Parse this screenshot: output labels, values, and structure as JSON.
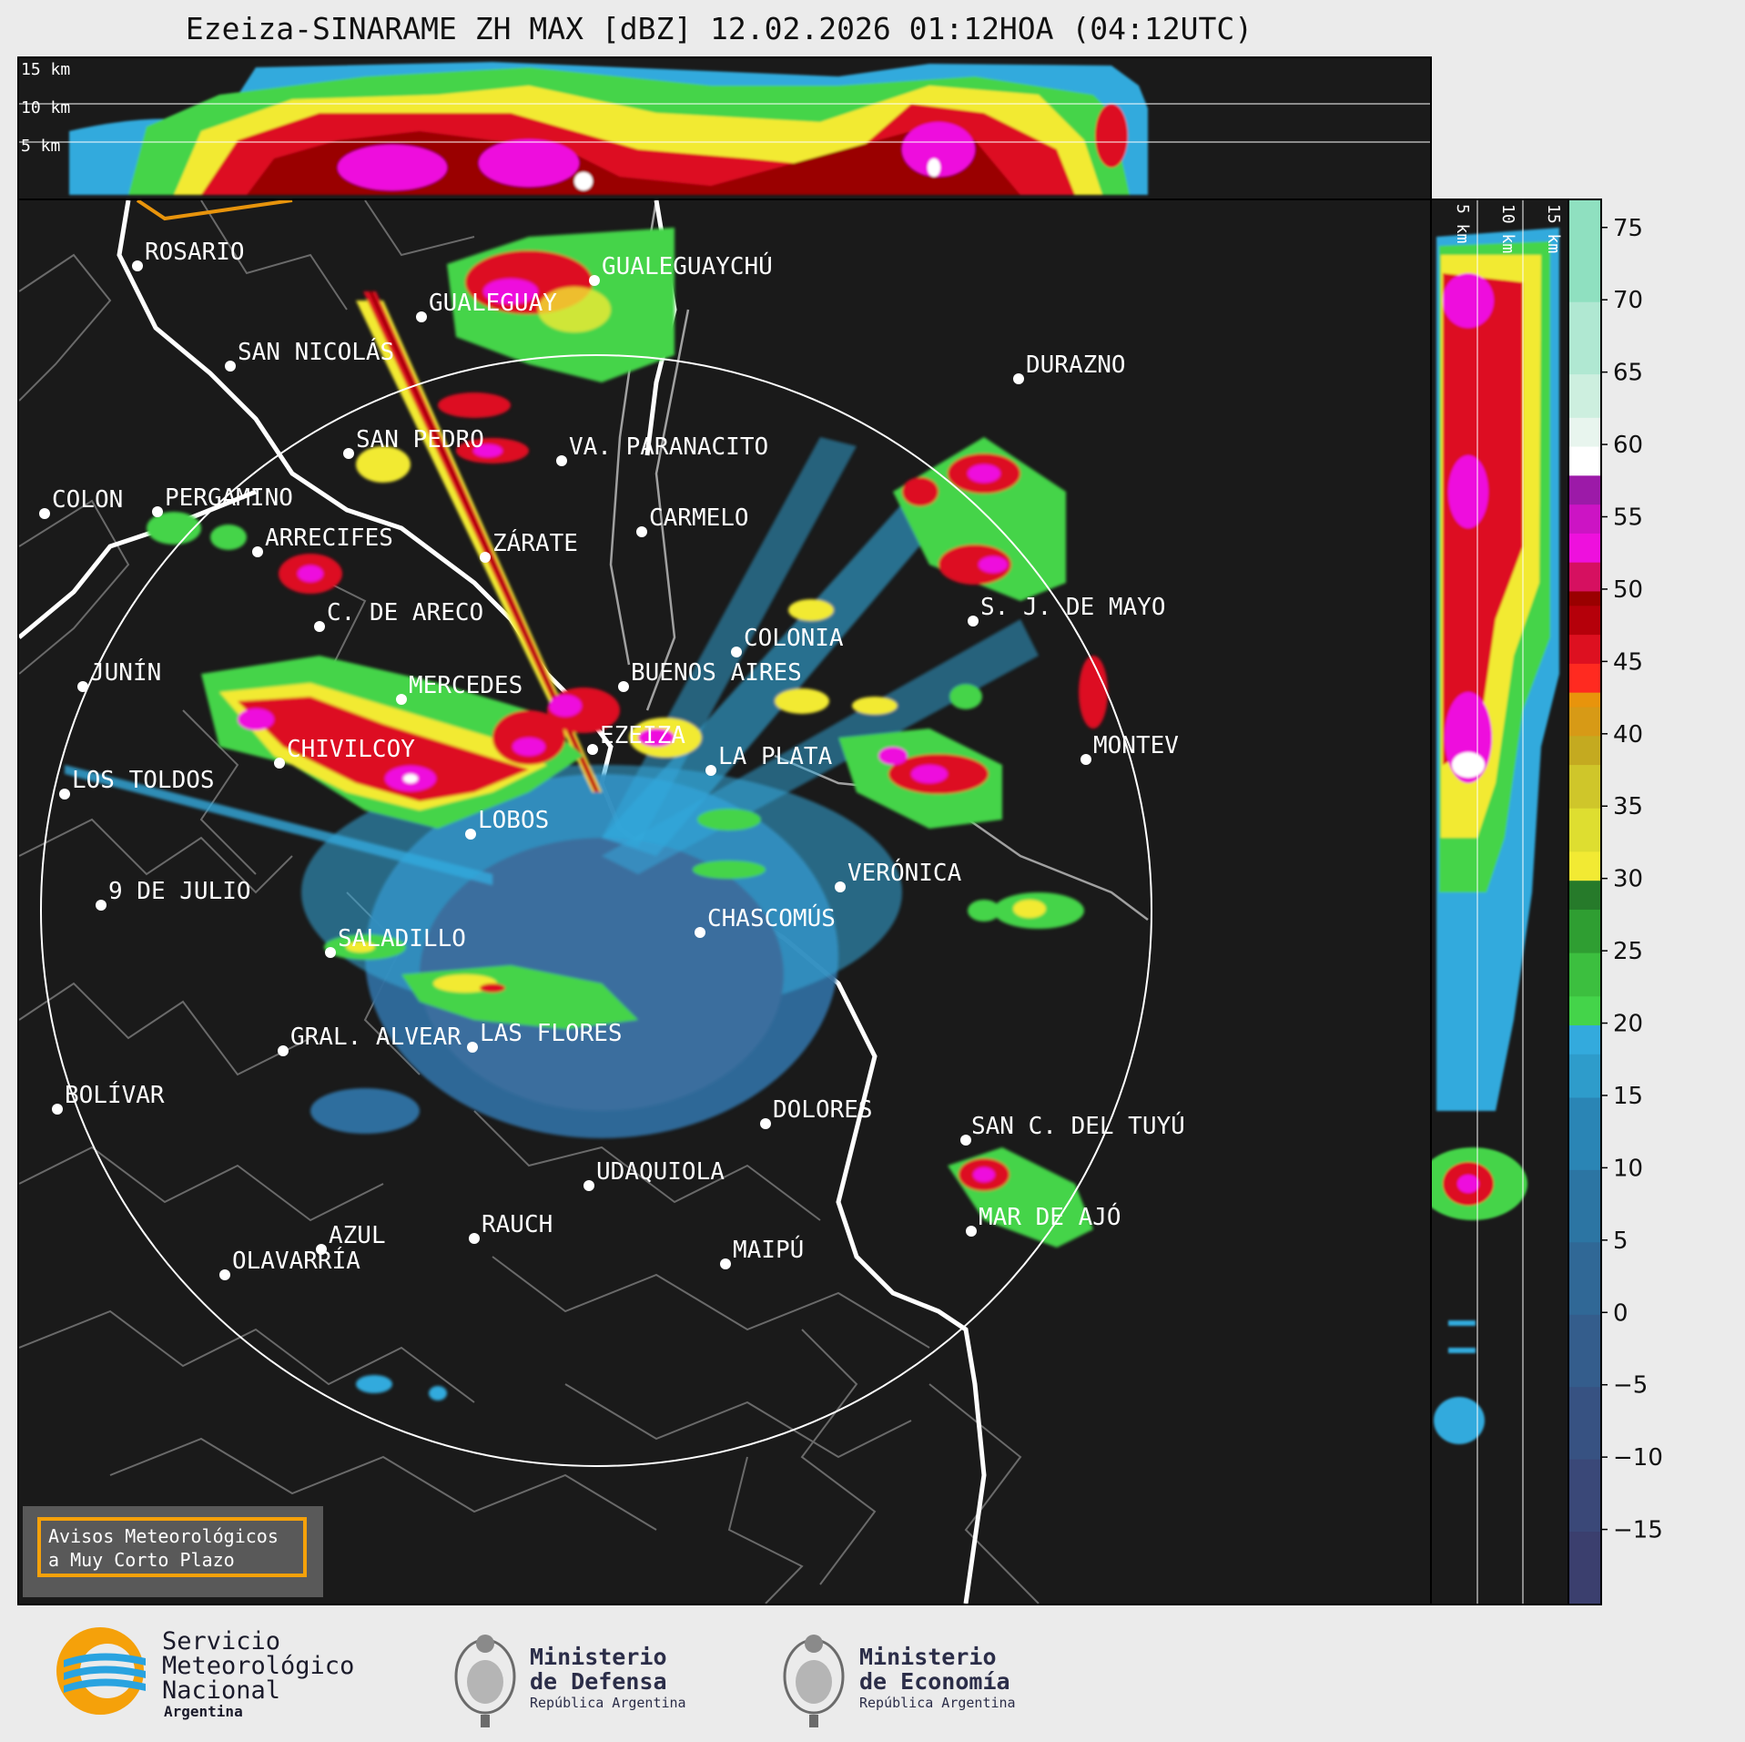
{
  "title": "Ezeiza-SINARAME ZH MAX [dBZ] 12.02.2026 01:12HOA (04:12UTC)",
  "height_labels": [
    "15 km",
    "10 km",
    "5 km"
  ],
  "colorbar": {
    "ticks": [
      "75",
      "70",
      "65",
      "60",
      "55",
      "50",
      "45",
      "40",
      "35",
      "30",
      "25",
      "20",
      "15",
      "10",
      "5",
      "0",
      "−5",
      "−10",
      "−15"
    ],
    "colors": {
      "dark_blue": "#3b3f6e",
      "steel": "#2f6e9e",
      "cyan": "#33aadd",
      "green": "#44d44a",
      "dark_green": "#267a2a",
      "yellow": "#f2ea33",
      "orange": "#e8940c",
      "red": "#dd1020",
      "dark_red": "#9a0000",
      "magenta": "#ee10dd",
      "purple": "#9c1aa8",
      "white": "#ffffff",
      "mint": "#8fe0c0"
    }
  },
  "cities": [
    "ROSARIO",
    "GUALEGUAYCHÚ",
    "GUALEGUAY",
    "SAN NICOLÁS",
    "DURAZNO",
    "SAN PEDRO",
    "VA. PARANACITO",
    "COLON",
    "PERGAMINO",
    "CARMELO",
    "ARRECIFES",
    "ZÁRATE",
    "S. J. DE MAYO",
    "C. DE ARECO",
    "COLONIA",
    "JUNÍN",
    "BUENOS AIRES",
    "MERCEDES",
    "EZEIZA",
    "MONTEV",
    "CHIVILCOY",
    "LA PLATA",
    "LOS TOLDOS",
    "LOBOS",
    "VERÓNICA",
    "9 DE JULIO",
    "CHASCOMÚS",
    "SALADILLO",
    "GRAL. ALVEAR",
    "LAS FLORES",
    "BOLÍVAR",
    "DOLORES",
    "SAN C. DEL TUYÚ",
    "UDAQUIOLA",
    "MAR DE AJÓ",
    "AZUL",
    "RAUCH",
    "OLAVARRÍA",
    "MAIPÚ"
  ],
  "legend_box": {
    "line1": "Avisos Meteorológicos",
    "line2": "a Muy Corto Plazo"
  },
  "logos": {
    "smn": {
      "line1": "Servicio",
      "line2": "Meteorológico",
      "line3": "Nacional",
      "line4": "Argentina"
    },
    "defensa": {
      "line1": "Ministerio",
      "line2": "de Defensa",
      "line3": "República Argentina"
    },
    "economia": {
      "line1": "Ministerio",
      "line2": "de Economía",
      "line3": "República Argentina"
    }
  }
}
